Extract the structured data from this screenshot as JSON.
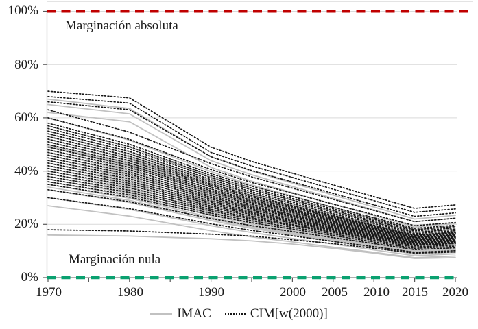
{
  "chart": {
    "y_axis": {
      "tick_labels": [
        "100%",
        "80%",
        "60%",
        "40%",
        "20%",
        "0%"
      ]
    },
    "x_axis": {
      "tick_labels": [
        "1970",
        "1980",
        "1990",
        "2000",
        "2005",
        "2010",
        "2015",
        "2020"
      ]
    },
    "annotations": {
      "top": "Marginación absoluta",
      "bottom": "Marginación nula"
    },
    "legend": [
      {
        "label": "IMAC"
      },
      {
        "label": "CIM[w(2000)]"
      }
    ]
  },
  "colors": {
    "reference_top": "#c00000",
    "reference_bottom": "#0aa170",
    "imac_line": "#c1c1c1",
    "cim_line": "#161616",
    "gridline": "#d9d9d9",
    "axis": "#9a9a9a",
    "tick": "#595959",
    "text": "#1b1b1b"
  },
  "chart_data": {
    "type": "line",
    "title": "",
    "xlabel": "",
    "ylabel": "",
    "xlim": [
      1970,
      2020
    ],
    "ylim": [
      0,
      100
    ],
    "grid": "horizontal",
    "legend_position": "bottom",
    "x": [
      1970,
      1980,
      1990,
      1995,
      2000,
      2005,
      2010,
      2015,
      2020
    ],
    "x_minor_tick_years": [
      1970,
      1975,
      1980,
      1985,
      1990,
      1995,
      2000,
      2005,
      2010,
      2015,
      2020
    ],
    "x_labeled_years": [
      1970,
      1980,
      1990,
      2000,
      2005,
      2010,
      2015,
      2020
    ],
    "y_tick_values": [
      0,
      20,
      40,
      60,
      80,
      100
    ],
    "reference_lines": [
      {
        "name": "Marginación absoluta",
        "value": 100,
        "color": "#c00000",
        "style": "dashed"
      },
      {
        "name": "Marginación nula",
        "value": 0,
        "color": "#0aa170",
        "style": "dashed"
      }
    ],
    "series_groups": [
      {
        "name": "IMAC",
        "style": "solid",
        "color": "#c1c1c1",
        "series": [
          [
            67,
            63.5,
            45.4,
            40,
            35.5,
            31,
            26.5,
            22,
            23.4
          ],
          [
            65,
            61.5,
            43.9,
            38.6,
            34.2,
            29.8,
            25.4,
            21,
            22.3
          ],
          [
            62,
            58.5,
            41.4,
            36.2,
            31.9,
            27.6,
            23.3,
            19,
            20.3
          ],
          [
            60,
            51.6,
            39.8,
            34.8,
            30.6,
            26.4,
            22.2,
            18,
            19.3
          ],
          [
            57,
            49,
            37.8,
            33,
            29,
            25,
            21,
            17,
            18.2
          ],
          [
            55,
            47.2,
            36.3,
            31.6,
            27.7,
            23.8,
            19.9,
            16,
            17.2
          ],
          [
            54,
            46.3,
            35.5,
            30.9,
            27.1,
            23.2,
            19.4,
            15.5,
            16.7
          ],
          [
            53,
            45.4,
            34.8,
            30.2,
            26.4,
            22.6,
            18.8,
            15,
            16.1
          ],
          [
            52,
            44.5,
            34,
            29.5,
            25.8,
            22,
            18.3,
            14.5,
            15.6
          ],
          [
            51,
            43.6,
            33.2,
            28.8,
            25.1,
            21.4,
            17.7,
            14,
            15.1
          ],
          [
            50,
            42.7,
            32.5,
            28.1,
            24.5,
            20.8,
            17.2,
            13.5,
            14.6
          ],
          [
            49.5,
            42.2,
            32,
            27.6,
            24,
            20.3,
            16.7,
            13,
            14.1
          ],
          [
            49,
            41.8,
            31.6,
            27.3,
            23.7,
            20,
            16.4,
            12.8,
            13.9
          ],
          [
            48,
            40.9,
            31,
            26.7,
            23.2,
            19.6,
            16.1,
            12.5,
            13.6
          ],
          [
            47,
            40,
            30.3,
            26.1,
            22.6,
            19.2,
            15.7,
            12.2,
            13.2
          ],
          [
            46,
            39.2,
            29.7,
            25.6,
            22.2,
            18.8,
            15.4,
            12,
            13
          ],
          [
            45,
            38.4,
            29.1,
            25.1,
            21.8,
            18.4,
            15.1,
            11.8,
            12.8
          ],
          [
            44,
            37.5,
            28.4,
            24.5,
            21.3,
            18,
            14.8,
            11.5,
            12.5
          ],
          [
            43,
            36.6,
            27.7,
            23.9,
            20.7,
            17.6,
            14.4,
            11.2,
            12.2
          ],
          [
            42,
            35.8,
            27.1,
            23.4,
            20.3,
            17.2,
            14.1,
            11,
            11.9
          ],
          [
            41,
            35,
            26.5,
            22.9,
            19.9,
            16.8,
            13.8,
            10.8,
            11.7
          ],
          [
            40,
            34.1,
            25.8,
            22.3,
            19.4,
            16.4,
            13.4,
            10.5,
            11.4
          ],
          [
            39,
            33.2,
            25.2,
            21.7,
            18.8,
            16,
            13.1,
            10.2,
            11.1
          ],
          [
            38,
            32.4,
            24.6,
            21.2,
            18.4,
            15.6,
            12.8,
            10,
            10.8
          ],
          [
            37,
            31.6,
            23.9,
            20.7,
            18,
            15.2,
            12.5,
            9.8,
            10.6
          ],
          [
            36,
            30.7,
            23.3,
            20.1,
            17.5,
            14.8,
            12.2,
            9.5,
            10.3
          ],
          [
            35,
            29.8,
            22.6,
            19.5,
            16.9,
            14.4,
            11.8,
            9.2,
            10
          ],
          [
            34,
            29,
            22,
            19,
            16.5,
            14,
            11.5,
            9,
            9.8
          ],
          [
            33,
            28.2,
            21.4,
            18.5,
            16.1,
            13.6,
            11.2,
            8.8,
            9.5
          ],
          [
            30,
            25.6,
            19.5,
            16.9,
            14.7,
            12.6,
            10.4,
            8.2,
            8.9
          ],
          [
            27,
            23.1,
            17.6,
            15.3,
            13.4,
            11.4,
            9.5,
            7.5,
            8.1
          ],
          [
            16,
            15.6,
            14.6,
            13.8,
            12.6,
            11,
            9.2,
            7.2,
            7.5
          ]
        ]
      },
      {
        "name": "CIM[w(2000)]",
        "style": "dotted",
        "color": "#161616",
        "series": [
          [
            70,
            67.5,
            49,
            43.6,
            39.2,
            34.8,
            30.4,
            26,
            27.3
          ],
          [
            68,
            65.5,
            47,
            41.9,
            37.6,
            33.2,
            28.9,
            24.5,
            25.8
          ],
          [
            66,
            63,
            45.4,
            40.2,
            35.9,
            31.6,
            27.3,
            23,
            24.3
          ],
          [
            63,
            54.6,
            42.8,
            37.8,
            33.6,
            29.4,
            25.2,
            21,
            22.3
          ],
          [
            60,
            51.9,
            40.6,
            35.7,
            31.7,
            27.6,
            23.6,
            19.5,
            20.7
          ],
          [
            58,
            50.1,
            39,
            34.3,
            30.4,
            26.4,
            22.5,
            18.5,
            19.7
          ],
          [
            57,
            49.2,
            38.3,
            33.6,
            29.7,
            25.8,
            21.9,
            18,
            19.2
          ],
          [
            56,
            48.3,
            37.5,
            32.9,
            29.1,
            25.2,
            21.4,
            17.5,
            18.7
          ],
          [
            55,
            47.4,
            36.8,
            32.2,
            28.4,
            24.6,
            20.8,
            17,
            18.1
          ],
          [
            54,
            46.5,
            36,
            31.5,
            27.8,
            24,
            20.3,
            16.5,
            17.6
          ],
          [
            53,
            45.6,
            35.2,
            30.8,
            27.1,
            23.4,
            19.7,
            16,
            17.1
          ],
          [
            52,
            44.8,
            34.6,
            30.3,
            26.7,
            23,
            19.4,
            15.8,
            16.9
          ],
          [
            51,
            43.9,
            34,
            29.7,
            26.2,
            22.6,
            19.1,
            15.5,
            16.6
          ],
          [
            50,
            43,
            33.3,
            29.1,
            25.6,
            22.2,
            18.7,
            15.2,
            16.2
          ],
          [
            49,
            42.2,
            32.7,
            28.6,
            25.2,
            21.8,
            18.4,
            15,
            16
          ],
          [
            48,
            41.4,
            32.1,
            28.1,
            24.8,
            21.4,
            18.1,
            14.8,
            15.8
          ],
          [
            47,
            40.5,
            31.4,
            27.5,
            24.3,
            21,
            17.8,
            14.5,
            15.5
          ],
          [
            46,
            39.6,
            30.7,
            26.9,
            23.7,
            20.6,
            17.4,
            14.2,
            15.2
          ],
          [
            45,
            38.8,
            30.1,
            26.4,
            23.3,
            20.2,
            17.1,
            14,
            14.9
          ],
          [
            44,
            38,
            29.5,
            25.9,
            22.9,
            19.8,
            16.8,
            13.8,
            14.7
          ],
          [
            43,
            37.1,
            28.8,
            25.3,
            22.4,
            19.4,
            16.5,
            13.5,
            14.4
          ],
          [
            42,
            36.2,
            28.2,
            24.7,
            21.8,
            19,
            16.1,
            13.2,
            14.1
          ],
          [
            41,
            35.4,
            27.6,
            24.2,
            21.4,
            18.6,
            15.8,
            13,
            13.8
          ],
          [
            40,
            34.6,
            26.9,
            23.7,
            21,
            18.2,
            15.5,
            12.8,
            13.6
          ],
          [
            39,
            33.7,
            26.3,
            23.1,
            20.5,
            17.8,
            15.2,
            12.5,
            13.3
          ],
          [
            38,
            32.8,
            25.6,
            22.5,
            19.9,
            17.4,
            14.8,
            12.2,
            13
          ],
          [
            37,
            32,
            25,
            22,
            19.5,
            17,
            14.5,
            12,
            12.8
          ],
          [
            36,
            31.1,
            24.2,
            21.3,
            18.9,
            16.4,
            14,
            11.5,
            12.2
          ],
          [
            35,
            30.2,
            23.5,
            20.6,
            18.2,
            15.8,
            13.4,
            11,
            11.7
          ],
          [
            33,
            28.5,
            22.2,
            19.5,
            17.3,
            15,
            12.8,
            10.5,
            11.2
          ],
          [
            30,
            25.9,
            20.2,
            17.7,
            15.7,
            13.6,
            11.6,
            9.5,
            10.1
          ],
          [
            18,
            17.5,
            16.3,
            15.6,
            14.2,
            12.8,
            11,
            9.2,
            9.6
          ]
        ]
      }
    ]
  }
}
